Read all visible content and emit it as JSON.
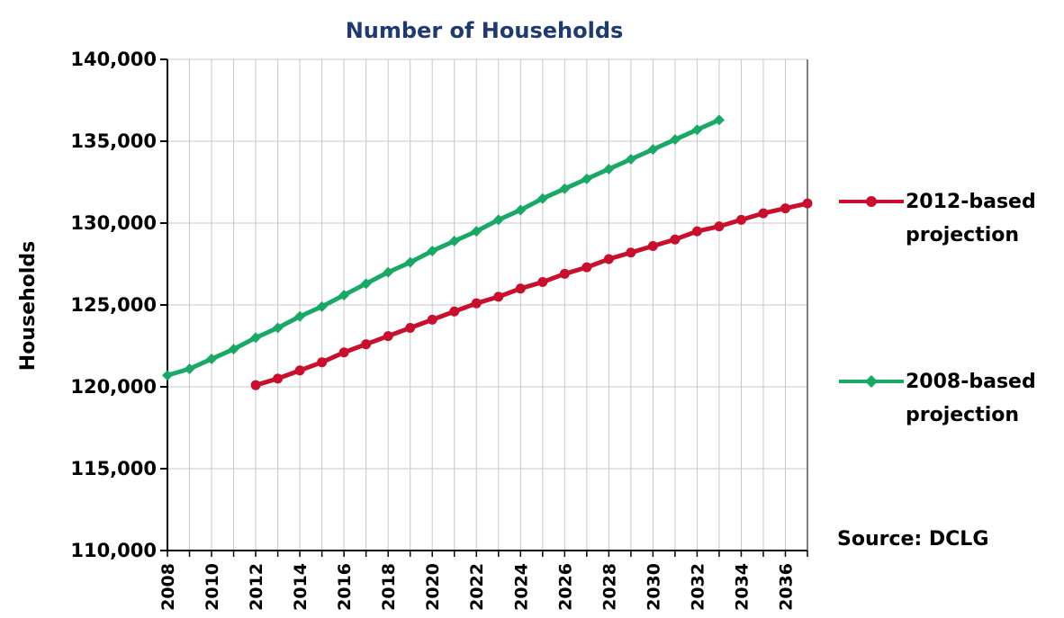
{
  "chart_data": {
    "type": "line",
    "title": "Number of Households",
    "ylabel": "Households",
    "xlabel": "",
    "ylim": [
      110000,
      140000
    ],
    "yticks": [
      110000,
      115000,
      120000,
      125000,
      130000,
      135000,
      140000
    ],
    "ytick_labels": [
      "110,000",
      "115,000",
      "120,000",
      "125,000",
      "130,000",
      "135,000",
      "140,000"
    ],
    "xlim": [
      2008,
      2037
    ],
    "xtick_labels": [
      "2008",
      "2010",
      "2012",
      "2014",
      "2016",
      "2018",
      "2020",
      "2022",
      "2024",
      "2026",
      "2028",
      "2030",
      "2032",
      "2034",
      "2036"
    ],
    "grid": true,
    "legend_position": "right",
    "series": [
      {
        "name": "2012-based projection",
        "color": "#c8102e",
        "marker": "circle",
        "x": [
          2012,
          2013,
          2014,
          2015,
          2016,
          2017,
          2018,
          2019,
          2020,
          2021,
          2022,
          2023,
          2024,
          2025,
          2026,
          2027,
          2028,
          2029,
          2030,
          2031,
          2032,
          2033,
          2034,
          2035,
          2036,
          2037
        ],
        "values": [
          120100,
          120500,
          121000,
          121500,
          122100,
          122600,
          123100,
          123600,
          124100,
          124600,
          125100,
          125500,
          126000,
          126400,
          126900,
          127300,
          127800,
          128200,
          128600,
          129000,
          129500,
          129800,
          130200,
          130600,
          130900,
          131200
        ]
      },
      {
        "name": "2008-based projection",
        "color": "#1aa867",
        "marker": "diamond",
        "x": [
          2008,
          2009,
          2010,
          2011,
          2012,
          2013,
          2014,
          2015,
          2016,
          2017,
          2018,
          2019,
          2020,
          2021,
          2022,
          2023,
          2024,
          2025,
          2026,
          2027,
          2028,
          2029,
          2030,
          2031,
          2032,
          2033
        ],
        "values": [
          120700,
          121100,
          121700,
          122300,
          123000,
          123600,
          124300,
          124900,
          125600,
          126300,
          127000,
          127600,
          128300,
          128900,
          129500,
          130200,
          130800,
          131500,
          132100,
          132700,
          133300,
          133900,
          134500,
          135100,
          135700,
          136300
        ]
      }
    ],
    "legend": [
      {
        "line1": "2012-based",
        "line2": "projection"
      },
      {
        "line1": "2008-based",
        "line2": "projection"
      }
    ]
  },
  "source_note": "Source: DCLG",
  "colors": {
    "title": "#1f3a6e",
    "grid": "#c8c8c8",
    "axis": "#000000"
  }
}
